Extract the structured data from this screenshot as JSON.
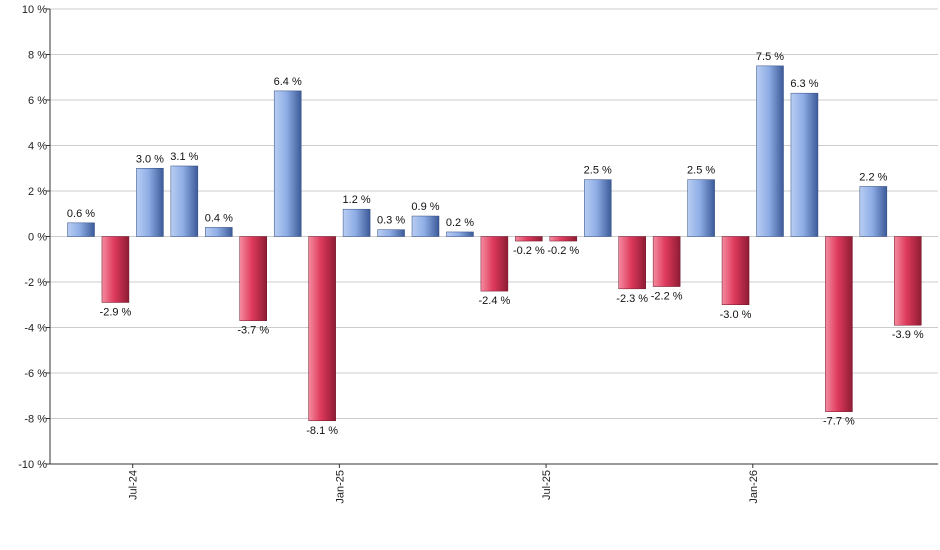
{
  "chart_data": {
    "type": "bar",
    "title": "",
    "xlabel": "",
    "ylabel": "",
    "ylim": [
      -10,
      10
    ],
    "y_ticks": [
      -10,
      -8,
      -6,
      -4,
      -2,
      0,
      2,
      4,
      6,
      8,
      10
    ],
    "y_tick_labels": [
      "-10 %",
      "-8 %",
      "-6 %",
      "-4 %",
      "-2 %",
      "0 %",
      "2 %",
      "4 %",
      "6 %",
      "8 %",
      "10 %"
    ],
    "x_tick_labels": [
      {
        "label": "Jul-24",
        "index": 1.5
      },
      {
        "label": "Jan-25",
        "index": 7.5
      },
      {
        "label": "Jul-25",
        "index": 13.5
      },
      {
        "label": "Jan-26",
        "index": 19.5
      }
    ],
    "values": [
      0.6,
      -2.9,
      3.0,
      3.1,
      0.4,
      -3.7,
      6.4,
      -8.1,
      1.2,
      0.3,
      0.9,
      0.2,
      -2.4,
      -0.2,
      -0.2,
      2.5,
      -2.3,
      -2.2,
      2.5,
      -3.0,
      7.5,
      6.3,
      -7.7,
      2.2,
      -3.9
    ],
    "labels": [
      "0.6 %",
      "-2.9 %",
      "3.0 %",
      "3.1 %",
      "0.4 %",
      "-3.7 %",
      "6.4 %",
      "-8.1 %",
      "1.2 %",
      "0.3 %",
      "0.9 %",
      "0.2 %",
      "-2.4 %",
      "-0.2 %",
      "-0.2 %",
      "2.5 %",
      "-2.3 %",
      "-2.2 %",
      "2.5 %",
      "-3.0 %",
      "7.5 %",
      "6.3 %",
      "-7.7 %",
      "2.2 %",
      "-3.9 %"
    ],
    "grid": true,
    "legend": "none",
    "colors": {
      "positive_light": "#b8cdf2",
      "positive_dark": "#3c5a98",
      "negative_light": "#f48ca0",
      "negative_dark": "#8e1c34",
      "grid": "#cccccc",
      "axis": "#333333"
    }
  }
}
